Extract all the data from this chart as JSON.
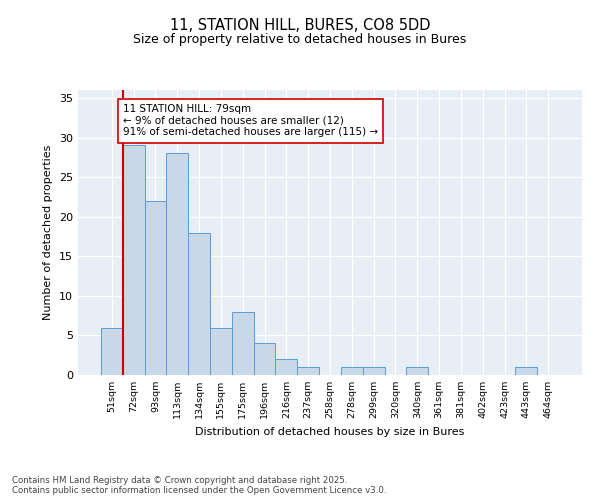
{
  "title1": "11, STATION HILL, BURES, CO8 5DD",
  "title2": "Size of property relative to detached houses in Bures",
  "xlabel": "Distribution of detached houses by size in Bures",
  "ylabel": "Number of detached properties",
  "bar_labels": [
    "51sqm",
    "72sqm",
    "93sqm",
    "113sqm",
    "134sqm",
    "155sqm",
    "175sqm",
    "196sqm",
    "216sqm",
    "237sqm",
    "258sqm",
    "278sqm",
    "299sqm",
    "320sqm",
    "340sqm",
    "361sqm",
    "381sqm",
    "402sqm",
    "423sqm",
    "443sqm",
    "464sqm"
  ],
  "bar_values": [
    6,
    29,
    22,
    28,
    18,
    6,
    8,
    4,
    2,
    1,
    0,
    1,
    1,
    0,
    1,
    0,
    0,
    0,
    0,
    1,
    0
  ],
  "bar_color": "#c8d8e8",
  "bar_edgecolor": "#5b9bd5",
  "vline_idx": 1,
  "vline_color": "#cc0000",
  "annotation_title": "11 STATION HILL: 79sqm",
  "annotation_line1": "← 9% of detached houses are smaller (12)",
  "annotation_line2": "91% of semi-detached houses are larger (115) →",
  "annotation_box_edgecolor": "#cc0000",
  "ylim": [
    0,
    36
  ],
  "yticks": [
    0,
    5,
    10,
    15,
    20,
    25,
    30,
    35
  ],
  "footer1": "Contains HM Land Registry data © Crown copyright and database right 2025.",
  "footer2": "Contains public sector information licensed under the Open Government Licence v3.0.",
  "plot_bg_color": "#e8eef5"
}
